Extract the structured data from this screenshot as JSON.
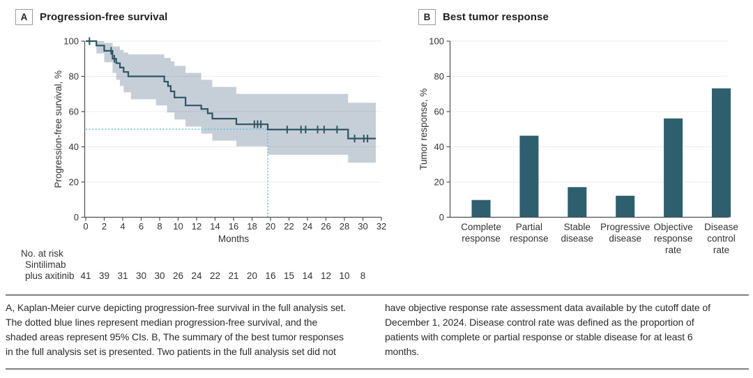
{
  "figure": {
    "panelA": {
      "label": "A",
      "title": "Progression-free survival"
    },
    "panelB": {
      "label": "B",
      "title": "Best tumor response"
    }
  },
  "chart_data": [
    {
      "type": "line",
      "subtype": "kaplan_meier_step",
      "panel": "A",
      "title": "Progression-free survival",
      "xlabel": "Months",
      "ylabel": "Progression-free survival, %",
      "xlim": [
        0,
        32
      ],
      "ylim": [
        0,
        100
      ],
      "xticks": [
        0,
        2,
        4,
        6,
        8,
        10,
        12,
        14,
        16,
        18,
        20,
        22,
        24,
        26,
        28,
        30,
        32
      ],
      "yticks": [
        0,
        20,
        40,
        60,
        80,
        100
      ],
      "grid": "horizontal",
      "end_month": 31.4,
      "median_month": 19.7,
      "median_level_pct": 50,
      "series": [
        {
          "name": "Sintilimab plus axitinib",
          "steps": [
            [
              0,
              100
            ],
            [
              1.15,
              97.5
            ],
            [
              2.0,
              94.5
            ],
            [
              2.9,
              90
            ],
            [
              3.3,
              87.5
            ],
            [
              3.7,
              85
            ],
            [
              4.1,
              82.5
            ],
            [
              4.6,
              80
            ],
            [
              8.5,
              77
            ],
            [
              8.9,
              74.5
            ],
            [
              9.2,
              71.5
            ],
            [
              9.6,
              68
            ],
            [
              10.8,
              63.5
            ],
            [
              12.5,
              61.5
            ],
            [
              13.2,
              59
            ],
            [
              13.7,
              56
            ],
            [
              16.3,
              52.8
            ],
            [
              19.7,
              49.8
            ],
            [
              28.4,
              44.7
            ]
          ],
          "ci_upper": [
            [
              0,
              100
            ],
            [
              2.0,
              99
            ],
            [
              2.9,
              97
            ],
            [
              3.7,
              95
            ],
            [
              4.1,
              93.5
            ],
            [
              4.6,
              92.5
            ],
            [
              8.5,
              90.5
            ],
            [
              9.2,
              88.5
            ],
            [
              9.6,
              86
            ],
            [
              10.8,
              82
            ],
            [
              12.5,
              78
            ],
            [
              13.7,
              74
            ],
            [
              16.3,
              70
            ],
            [
              28.4,
              65
            ]
          ],
          "ci_lower": [
            [
              0,
              100
            ],
            [
              1.15,
              93
            ],
            [
              2.0,
              88
            ],
            [
              2.9,
              82
            ],
            [
              3.3,
              78
            ],
            [
              3.7,
              74.5
            ],
            [
              4.1,
              71
            ],
            [
              4.9,
              67
            ],
            [
              7.6,
              63.5
            ],
            [
              8.8,
              59.5
            ],
            [
              9.6,
              55.5
            ],
            [
              10.8,
              51.5
            ],
            [
              12.5,
              47.5
            ],
            [
              13.7,
              43.5
            ],
            [
              16.3,
              40.3
            ],
            [
              19.7,
              35.5
            ],
            [
              28.4,
              31
            ]
          ],
          "censor_marks": [
            [
              0.4,
              100
            ],
            [
              2.75,
              94.5
            ],
            [
              3.1,
              90
            ],
            [
              18.25,
              52.8
            ],
            [
              18.6,
              52.8
            ],
            [
              18.95,
              52.8
            ],
            [
              21.8,
              49.8
            ],
            [
              23.3,
              49.8
            ],
            [
              23.8,
              49.8
            ],
            [
              25.1,
              49.8
            ],
            [
              25.8,
              49.8
            ],
            [
              27.2,
              49.8
            ],
            [
              29.1,
              44.7
            ],
            [
              30.1,
              44.7
            ],
            [
              30.5,
              44.7
            ]
          ]
        }
      ],
      "at_risk": {
        "header": "No. at risk",
        "group_label_lines": [
          "Sintilimab",
          "plus axitinib"
        ],
        "months": [
          0,
          2,
          4,
          6,
          8,
          10,
          12,
          14,
          16,
          18,
          20,
          22,
          24,
          26,
          28,
          30
        ],
        "values": [
          41,
          39,
          31,
          30,
          30,
          26,
          24,
          22,
          21,
          20,
          16,
          15,
          14,
          12,
          10,
          8
        ]
      }
    },
    {
      "type": "bar",
      "panel": "B",
      "title": "Best tumor response",
      "xlabel": "",
      "ylabel": "Tumor response, %",
      "ylim": [
        0,
        100
      ],
      "yticks": [
        0,
        20,
        40,
        60,
        80,
        100
      ],
      "grid": "horizontal",
      "categories": [
        "Complete response",
        "Partial response",
        "Stable disease",
        "Progressive disease",
        "Objective response rate",
        "Disease control rate"
      ],
      "category_label_lines": [
        [
          "Complete",
          "response"
        ],
        [
          "Partial",
          "response"
        ],
        [
          "Stable",
          "disease"
        ],
        [
          "Progressive",
          "disease"
        ],
        [
          "Objective",
          "response",
          "rate"
        ],
        [
          "Disease",
          "control",
          "rate"
        ]
      ],
      "values": [
        9.8,
        46.3,
        17.1,
        12.2,
        56.1,
        73.2
      ]
    }
  ],
  "caption": {
    "left_lines": [
      "A, Kaplan-Meier curve depicting progression-free survival in the full analysis set.",
      "The dotted blue lines represent median progression-free survival, and the",
      "shaded areas represent 95% CIs. B, The summary of the best tumor responses",
      "in the full analysis set is presented. Two patients in the full analysis set did not"
    ],
    "right_lines": [
      "have objective response rate assessment data available by the cutoff date of",
      "December 1, 2024. Disease control rate was defined as the proportion of",
      "patients with complete or partial response or stable disease for at least 6",
      "months."
    ]
  },
  "colors": {
    "km_curve": "#2d5564",
    "ci_band": "#c6cfd7",
    "median_dotted": "#5fc0dd",
    "bar_fill": "#2e5f6f",
    "axis_line": "#4f4f4f",
    "gridline_rgba": "rgba(0,0,0,0.075)",
    "tick_text": "#333333",
    "caption_text": "#2b2b2b",
    "rule_line": "#7f7f7f",
    "panel_box_border": "#9a9a9a",
    "panel_title_text": "#212121"
  }
}
